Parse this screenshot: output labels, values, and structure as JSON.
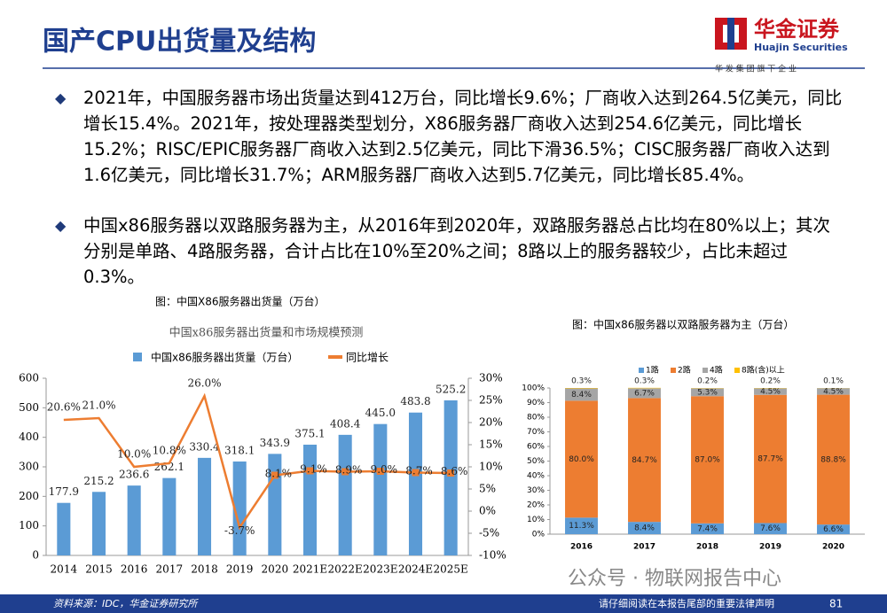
{
  "header": {
    "title": "国产CPU出货量及结构",
    "logo_name": "华金证券",
    "logo_english": "Huajin Securities",
    "logo_tagline": "华 发 集 团 旗 下 企 业"
  },
  "bullets": [
    "2021年，中国服务器市场出货量达到412万台，同比增长9.6%；厂商收入达到264.5亿美元，同比增长15.4%。2021年，按处理器类型划分，X86服务器厂商收入达到254.6亿美元，同比增长15.2%；RISC/EPIC服务器厂商收入达到2.5亿美元，同比下滑36.5%；CISC服务器厂商收入达到1.6亿美元，同比增长31.7%；ARM服务器厂商收入达到5.7亿美元，同比增长85.4%。",
    "中国x86服务器以双路服务器为主，从2016年到2020年，双路服务器总占比均在80%以上；其次分别是单路、4路服务器，合计占比在10%至20%之间；8路以上的服务器较少，占比未超过0.3%。"
  ],
  "chart_data": [
    {
      "type": "bar",
      "caption": "图：中国X86服务器出货量（万台）",
      "title": "中国x86服务器出货量和市场规模预测",
      "categories": [
        "2014",
        "2015",
        "2016",
        "2017",
        "2018",
        "2019",
        "2020",
        "2021E",
        "2022E",
        "2023E",
        "2024E",
        "2025E"
      ],
      "series": [
        {
          "name": "中国x86服务器出货量（万台）",
          "type": "bar",
          "color": "#5b9bd5",
          "values": [
            177.9,
            215.2,
            236.6,
            262.1,
            330.4,
            318.1,
            343.9,
            375.1,
            408.4,
            445.0,
            483.8,
            525.2
          ],
          "value_labels": [
            "177.9",
            "215.2",
            "236.6",
            "262.1",
            "330.4",
            "318.1",
            "343.9",
            "375.1",
            "408.4",
            "445.0",
            "483.8",
            "525.2"
          ]
        },
        {
          "name": "同比增长",
          "type": "line",
          "axis": "y2",
          "color": "#ed7d31",
          "values": [
            20.6,
            21.0,
            10.0,
            10.8,
            26.0,
            -3.7,
            8.1,
            9.1,
            8.9,
            9.0,
            8.7,
            8.6
          ],
          "value_labels": [
            "20.6%",
            "21.0%",
            "10.0%",
            "10.8%",
            "26.0%",
            "-3.7%",
            "8.1%",
            "9.1%",
            "8.9%",
            "9.0%",
            "8.7%",
            "8.6%"
          ]
        }
      ],
      "ylim": [
        0,
        600
      ],
      "yticks": [
        0,
        100,
        200,
        300,
        400,
        500,
        600
      ],
      "y2lim": [
        -10,
        30
      ],
      "y2ticks": [
        {
          "value": -10,
          "label": "-10%"
        },
        {
          "value": -5,
          "label": "-5%"
        },
        {
          "value": 0,
          "label": "0%"
        },
        {
          "value": 5,
          "label": "5%"
        },
        {
          "value": 10,
          "label": "10%"
        },
        {
          "value": 15,
          "label": "15%"
        },
        {
          "value": 20,
          "label": "20%"
        },
        {
          "value": 25,
          "label": "25%"
        },
        {
          "value": 30,
          "label": "30%"
        }
      ]
    },
    {
      "type": "bar",
      "stacked": true,
      "caption": "图：中国x86服务器以双路服务器为主（万台）",
      "categories": [
        "2016",
        "2017",
        "2018",
        "2019",
        "2020"
      ],
      "series": [
        {
          "name": "1路",
          "color": "#5b9bd5",
          "values": [
            11.3,
            8.4,
            7.4,
            7.6,
            6.6
          ],
          "value_labels": [
            "11.3%",
            "8.4%",
            "7.4%",
            "7.6%",
            "6.6%"
          ]
        },
        {
          "name": "2路",
          "color": "#ed7d31",
          "values": [
            80.0,
            84.7,
            87.0,
            87.7,
            88.8
          ],
          "value_labels": [
            "80.0%",
            "84.7%",
            "87.0%",
            "87.7%",
            "88.8%"
          ]
        },
        {
          "name": "4路",
          "color": "#a5a5a5",
          "values": [
            8.4,
            6.7,
            5.3,
            4.5,
            4.5
          ],
          "value_labels": [
            "8.4%",
            "6.7%",
            "5.3%",
            "4.5%",
            "4.5%"
          ]
        },
        {
          "name": "8路(含)以上",
          "color": "#ffc000",
          "values": [
            0.3,
            0.3,
            0.2,
            0.2,
            0.1
          ],
          "value_labels": [
            "0.3%",
            "0.3%",
            "0.2%",
            "0.2%",
            "0.1%"
          ]
        }
      ],
      "ylim": [
        0,
        100
      ],
      "yticks": [
        {
          "value": 0,
          "label": "0%"
        },
        {
          "value": 10,
          "label": "10%"
        },
        {
          "value": 20,
          "label": "20%"
        },
        {
          "value": 30,
          "label": "30%"
        },
        {
          "value": 40,
          "label": "40%"
        },
        {
          "value": 50,
          "label": "50%"
        },
        {
          "value": 60,
          "label": "60%"
        },
        {
          "value": 70,
          "label": "70%"
        },
        {
          "value": 80,
          "label": "80%"
        },
        {
          "value": 90,
          "label": "90%"
        },
        {
          "value": 100,
          "label": "100%"
        }
      ]
    }
  ],
  "watermark": "公众号 · 物联网报告中心",
  "footer": {
    "source": "资料来源：IDC，华金证券研究所",
    "disclaimer": "请仔细阅读在本报告尾部的重要法律声明",
    "page": "81"
  }
}
